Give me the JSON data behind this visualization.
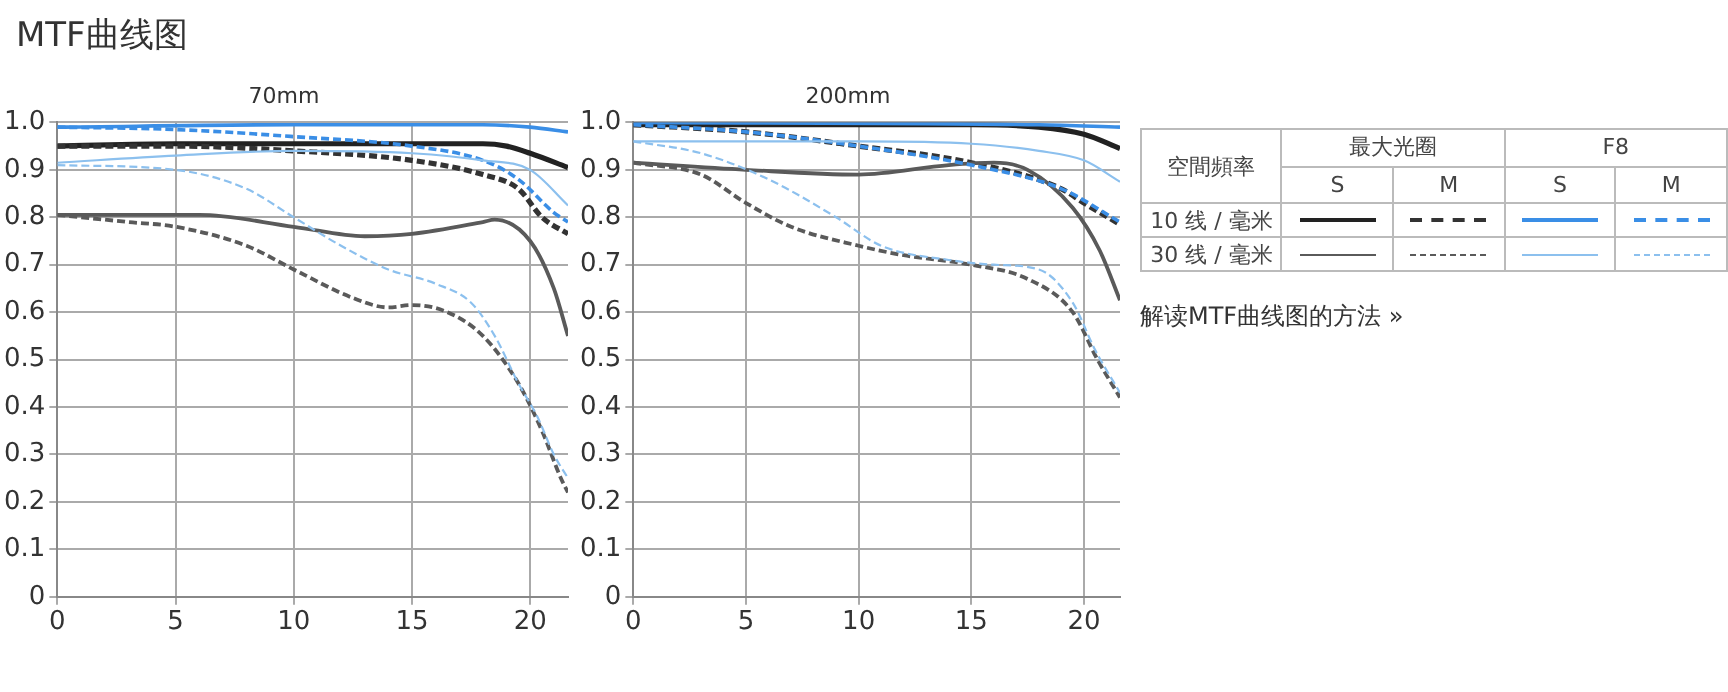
{
  "chart_data": [
    {
      "type": "line",
      "title": "70mm",
      "xlim": [
        0,
        21.6
      ],
      "xticks": [
        0,
        5,
        10,
        15,
        20
      ],
      "ylim": [
        0,
        1
      ],
      "yticks": [
        0,
        0.1,
        0.2,
        0.3,
        0.4,
        0.5,
        0.6,
        0.7,
        0.8,
        0.9,
        {
          "value": 1,
          "label": "1.0"
        }
      ],
      "grid": true,
      "legend": false,
      "marker": "none",
      "series": [
        {
          "color": "#222222",
          "line_style": "solid",
          "x": [
            0,
            5,
            10,
            15,
            18,
            19,
            20,
            21.6
          ],
          "values": [
            0.95,
            0.955,
            0.955,
            0.955,
            0.955,
            0.95,
            0.935,
            0.905
          ]
        },
        {
          "color": "#333333",
          "line_style": "dashed",
          "x": [
            0,
            5,
            10,
            15,
            18,
            19.5,
            20.5,
            21.6
          ],
          "values": [
            0.95,
            0.95,
            0.94,
            0.92,
            0.89,
            0.86,
            0.8,
            0.765
          ]
        },
        {
          "color": "#5a5a5a",
          "line_style": "solid",
          "x": [
            0,
            6,
            10,
            13,
            15,
            18,
            18.5,
            20,
            21,
            21.6
          ],
          "values": [
            0.805,
            0.805,
            0.78,
            0.76,
            0.765,
            0.79,
            0.795,
            0.75,
            0.65,
            0.55
          ]
        },
        {
          "color": "#5a5a5a",
          "line_style": "dashed",
          "x": [
            0,
            3,
            5,
            8,
            10,
            12.5,
            14,
            15,
            16.5,
            18,
            19.5,
            20.5,
            21.3,
            21.6
          ],
          "values": [
            0.805,
            0.79,
            0.78,
            0.74,
            0.69,
            0.63,
            0.61,
            0.615,
            0.6,
            0.55,
            0.45,
            0.35,
            0.25,
            0.22
          ]
        },
        {
          "color": "#3a8ee6",
          "line_style": "solid",
          "x": [
            0,
            10,
            18,
            20,
            21.6
          ],
          "values": [
            0.99,
            0.995,
            0.995,
            0.99,
            0.98
          ]
        },
        {
          "color": "#3a8ee6",
          "line_style": "dashed",
          "x": [
            0,
            5,
            10,
            15,
            18,
            19.5,
            21,
            21.6
          ],
          "values": [
            0.99,
            0.985,
            0.97,
            0.95,
            0.92,
            0.88,
            0.81,
            0.79
          ]
        },
        {
          "color": "#8cc0ee",
          "line_style": "solid",
          "x": [
            0,
            5,
            10,
            15,
            18,
            20,
            21.6
          ],
          "values": [
            0.915,
            0.93,
            0.94,
            0.935,
            0.92,
            0.9,
            0.825
          ]
        },
        {
          "color": "#8cc0ee",
          "line_style": "dashed",
          "x": [
            0,
            5,
            8,
            10,
            12,
            14,
            16,
            17.5,
            18.5,
            19.5,
            20.3,
            21,
            21.6
          ],
          "values": [
            0.91,
            0.9,
            0.86,
            0.8,
            0.74,
            0.69,
            0.66,
            0.62,
            0.55,
            0.45,
            0.38,
            0.3,
            0.25
          ]
        }
      ]
    },
    {
      "type": "line",
      "title": "200mm",
      "xlim": [
        0,
        21.6
      ],
      "xticks": [
        0,
        5,
        10,
        15,
        20
      ],
      "ylim": [
        0,
        1
      ],
      "yticks": [
        0,
        0.1,
        0.2,
        0.3,
        0.4,
        0.5,
        0.6,
        0.7,
        0.8,
        0.9,
        {
          "value": 1,
          "label": "1.0"
        }
      ],
      "grid": true,
      "legend": false,
      "marker": "none",
      "series": [
        {
          "color": "#222222",
          "line_style": "solid",
          "x": [
            0,
            15,
            18,
            20,
            21.6
          ],
          "values": [
            0.995,
            0.995,
            0.99,
            0.975,
            0.945
          ]
        },
        {
          "color": "#333333",
          "line_style": "dashed",
          "x": [
            0,
            5,
            10,
            15,
            19,
            20,
            21.6
          ],
          "values": [
            0.995,
            0.98,
            0.95,
            0.915,
            0.86,
            0.83,
            0.785
          ]
        },
        {
          "color": "#5a5a5a",
          "line_style": "solid",
          "x": [
            0,
            5,
            10,
            14,
            16,
            17.5,
            19.5,
            20.7,
            21.6
          ],
          "values": [
            0.915,
            0.9,
            0.89,
            0.91,
            0.915,
            0.9,
            0.82,
            0.73,
            0.625
          ]
        },
        {
          "color": "#5a5a5a",
          "line_style": "dashed",
          "x": [
            0,
            3,
            5,
            7,
            10,
            12,
            15,
            17.5,
            19.5,
            20.6,
            21.6
          ],
          "values": [
            0.915,
            0.89,
            0.83,
            0.78,
            0.74,
            0.72,
            0.7,
            0.67,
            0.6,
            0.5,
            0.42
          ]
        },
        {
          "color": "#3a8ee6",
          "line_style": "solid",
          "x": [
            0,
            18,
            21.6
          ],
          "values": [
            1,
            0.995,
            0.99
          ]
        },
        {
          "color": "#3a8ee6",
          "line_style": "dashed",
          "x": [
            0,
            5,
            10,
            15,
            19,
            21.6
          ],
          "values": [
            0.995,
            0.98,
            0.95,
            0.91,
            0.86,
            0.79
          ]
        },
        {
          "color": "#8cc0ee",
          "line_style": "solid",
          "x": [
            0,
            10,
            15,
            18,
            20,
            21.6
          ],
          "values": [
            0.96,
            0.96,
            0.955,
            0.94,
            0.92,
            0.875
          ]
        },
        {
          "color": "#8cc0ee",
          "line_style": "dashed",
          "x": [
            0,
            3,
            6,
            9,
            11,
            14,
            16,
            18,
            19.5,
            20.5,
            21.6
          ],
          "values": [
            0.96,
            0.935,
            0.88,
            0.8,
            0.74,
            0.71,
            0.7,
            0.69,
            0.62,
            0.52,
            0.43
          ]
        }
      ]
    },
    {
      "type": "other",
      "title": "MTF曲线图",
      "annotations": [
        "空間頻率",
        "最大光圈",
        "F8",
        "S",
        "M",
        "S",
        "M",
        "10 线 / 毫米",
        "30 线 / 毫米",
        "解读MTF曲线图的方法 »"
      ]
    }
  ]
}
